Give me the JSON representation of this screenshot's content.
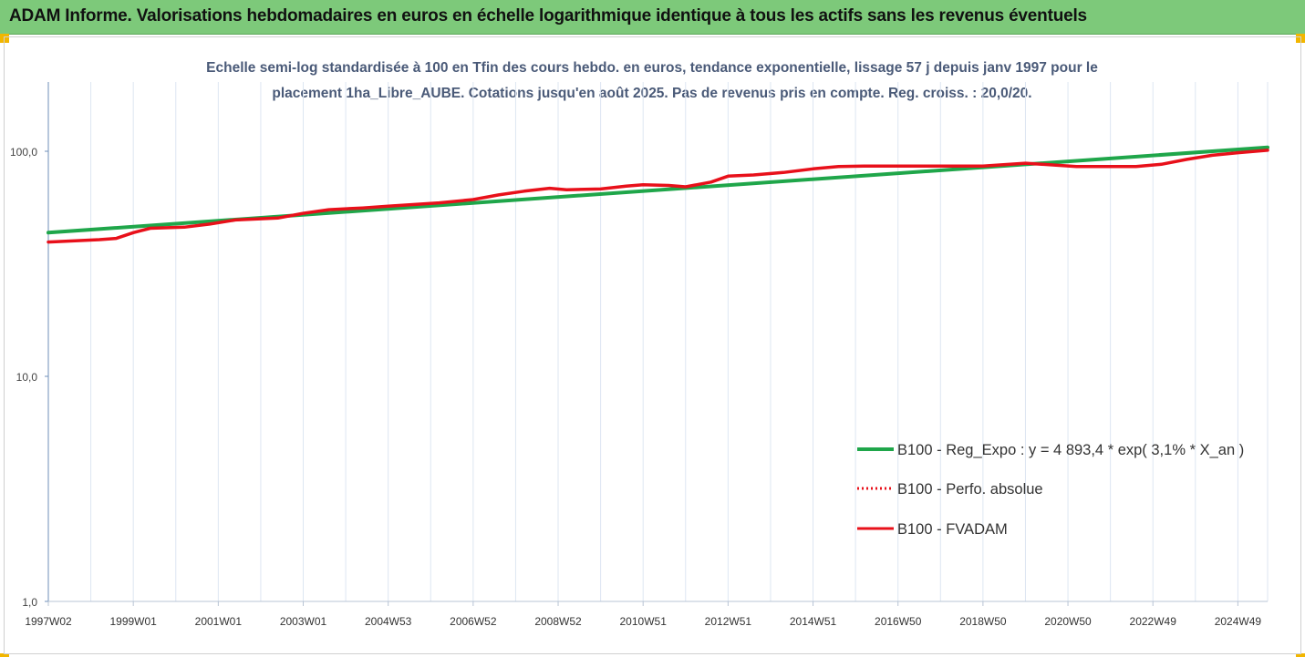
{
  "header": {
    "title": "ADAM Informe. Valorisations hebdomadaires en euros en échelle logarithmique identique à tous les actifs sans les revenus éventuels"
  },
  "chart_data": {
    "type": "line",
    "title_line1": "Echelle semi-log standardisée à 100 en Tfin des cours hebdo. en euros, tendance exponentielle, lissage 57 j depuis janv 1997 pour le",
    "title_line2": "placement 1ha_Libre_AUBE. Cotations jusqu'en août 2025. Pas de revenus pris en compte. Reg. croiss. : 20,0/20.",
    "y_scale": "log",
    "ylim": [
      1,
      200
    ],
    "y_ticks": [
      1,
      10,
      100
    ],
    "y_tick_labels": [
      "1,0",
      "10,0",
      "100,0"
    ],
    "xlim": [
      1997.0,
      2025.7
    ],
    "x_tick_positions": [
      1997.0,
      1999.0,
      2001.0,
      2003.0,
      2005.0,
      2007.0,
      2009.0,
      2011.0,
      2013.0,
      2015.0,
      2017.0,
      2019.0,
      2021.0,
      2023.0,
      2025.0
    ],
    "x_tick_labels": [
      "1997W02",
      "1999W01",
      "2001W01",
      "2003W01",
      "2004W53",
      "2006W52",
      "2008W52",
      "2010W51",
      "2012W51",
      "2014W51",
      "2016W50",
      "2018W50",
      "2020W50",
      "2022W49",
      "2024W49"
    ],
    "grid": "vertical",
    "legend_position": "right-bottom",
    "series": [
      {
        "name": "B100 - Reg_Expo : y = 4 893,4 * exp( 3,1% *  X_an )",
        "color": "#1fa64a",
        "style": "solid",
        "x": [
          1997.0,
          2025.7
        ],
        "y": [
          43.5,
          104.0
        ]
      },
      {
        "name": "B100 - Perfo. absolue",
        "color": "#e8101a",
        "style": "dotted",
        "x": [
          1997.0,
          1998.2,
          1998.6,
          1999.0,
          1999.4,
          2000.2,
          2000.8,
          2001.4,
          2002.4,
          2003.0,
          2003.6,
          2004.4,
          2005.0,
          2006.2,
          2007.0,
          2007.6,
          2008.2,
          2008.8,
          2009.2,
          2010.0,
          2010.6,
          2011.0,
          2011.6,
          2012.0,
          2012.6,
          2013.0,
          2013.6,
          2014.3,
          2015.0,
          2015.6,
          2016.2,
          2017.0,
          2018.2,
          2019.0,
          2020.0,
          2020.6,
          2021.2,
          2022.0,
          2022.6,
          2023.2,
          2023.8,
          2024.4,
          2025.0,
          2025.7
        ],
        "y": [
          39.5,
          40.5,
          41.0,
          43.5,
          45.5,
          46.0,
          47.5,
          49.5,
          50.5,
          53.0,
          55.0,
          56.0,
          57.0,
          59.0,
          61.0,
          64.0,
          66.5,
          68.5,
          67.5,
          68.0,
          70.0,
          71.0,
          70.5,
          69.5,
          73.0,
          77.5,
          78.5,
          80.5,
          83.5,
          85.5,
          86.0,
          86.0,
          86.0,
          86.0,
          88.5,
          87.0,
          85.5,
          85.5,
          85.5,
          87.5,
          92.0,
          96.0,
          98.5,
          101.0
        ]
      },
      {
        "name": "B100 - FVADAM",
        "color": "#e8101a",
        "style": "solid",
        "x": [
          1997.0,
          1998.2,
          1998.6,
          1999.0,
          1999.4,
          2000.2,
          2000.8,
          2001.4,
          2002.4,
          2003.0,
          2003.6,
          2004.4,
          2005.0,
          2006.2,
          2007.0,
          2007.6,
          2008.2,
          2008.8,
          2009.2,
          2010.0,
          2010.6,
          2011.0,
          2011.6,
          2012.0,
          2012.6,
          2013.0,
          2013.6,
          2014.3,
          2015.0,
          2015.6,
          2016.2,
          2017.0,
          2018.2,
          2019.0,
          2020.0,
          2020.6,
          2021.2,
          2022.0,
          2022.6,
          2023.2,
          2023.8,
          2024.4,
          2025.0,
          2025.7
        ],
        "y": [
          39.5,
          40.5,
          41.0,
          43.5,
          45.5,
          46.0,
          47.5,
          49.5,
          50.5,
          53.0,
          55.0,
          56.0,
          57.0,
          59.0,
          61.0,
          64.0,
          66.5,
          68.5,
          67.5,
          68.0,
          70.0,
          71.0,
          70.5,
          69.5,
          73.0,
          77.5,
          78.5,
          80.5,
          83.5,
          85.5,
          86.0,
          86.0,
          86.0,
          86.0,
          88.5,
          87.0,
          85.5,
          85.5,
          85.5,
          87.5,
          92.0,
          96.0,
          98.5,
          101.0
        ]
      }
    ]
  }
}
